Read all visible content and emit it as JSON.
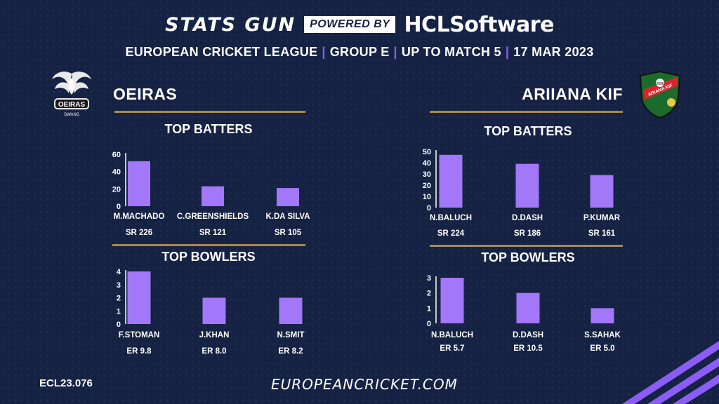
{
  "header": {
    "brand": "STATS GUN",
    "powered_by": "POWERED BY",
    "sponsor_hcl": "HCL",
    "sponsor_software": "Software",
    "league": "EUROPEAN CRICKET LEAGUE",
    "group": "GROUP  E",
    "match": "UP TO MATCH  5",
    "date": "17 MAR 2023"
  },
  "teams": {
    "left": {
      "name": "OEIRAS",
      "logo_text": "OEIRAS",
      "logo_sub": "SWANS"
    },
    "right": {
      "name": "ARIIANA KIF",
      "logo_text": "ARIANA KIF",
      "logo_year": "2006"
    }
  },
  "sections": {
    "batters": "TOP BATTERS",
    "bowlers": "TOP BOWLERS"
  },
  "footer": {
    "code": "ECL23.076",
    "url": "EUROPEANCRICKET.COM"
  },
  "colors": {
    "bar": "#a277f8",
    "axis": "#ffffff",
    "gold": "#a88a4e",
    "background": "#152243",
    "accent": "#8b5cf6"
  },
  "chart_data": [
    {
      "type": "bar",
      "title": "TOP BATTERS",
      "team": "OEIRAS",
      "categories": [
        "M.MACHADO",
        "C.GREENSHIELDS",
        "K.DA SILVA"
      ],
      "values": [
        52,
        23,
        21
      ],
      "sub_labels": [
        "SR 226",
        "SR 121",
        "SR 105"
      ],
      "yticks": [
        0,
        20,
        40,
        60
      ],
      "ylim": [
        0,
        60
      ]
    },
    {
      "type": "bar",
      "title": "TOP BOWLERS",
      "team": "OEIRAS",
      "categories": [
        "F.STOMAN",
        "J.KHAN",
        "N.SMIT"
      ],
      "values": [
        4,
        2,
        2
      ],
      "sub_labels": [
        "ER 9.8",
        "ER 8.0",
        "ER 8.2"
      ],
      "yticks": [
        0,
        1,
        2,
        3,
        4
      ],
      "ylim": [
        0,
        4
      ]
    },
    {
      "type": "bar",
      "title": "TOP BATTERS",
      "team": "ARIIANA KIF",
      "categories": [
        "N.BALUCH",
        "D.DASH",
        "P.KUMAR"
      ],
      "values": [
        47,
        39,
        29
      ],
      "sub_labels": [
        "SR 224",
        "SR 186",
        "SR 161"
      ],
      "yticks": [
        0,
        10,
        20,
        30,
        40,
        50
      ],
      "ylim": [
        0,
        50
      ]
    },
    {
      "type": "bar",
      "title": "TOP BOWLERS",
      "team": "ARIIANA KIF",
      "categories": [
        "N.BALUCH",
        "D.DASH",
        "S.SAHAK"
      ],
      "values": [
        3,
        2,
        1
      ],
      "sub_labels": [
        "ER 5.7",
        "ER 10.5",
        "ER 5.0"
      ],
      "yticks": [
        0,
        1,
        2,
        3
      ],
      "ylim": [
        0,
        3
      ]
    }
  ]
}
